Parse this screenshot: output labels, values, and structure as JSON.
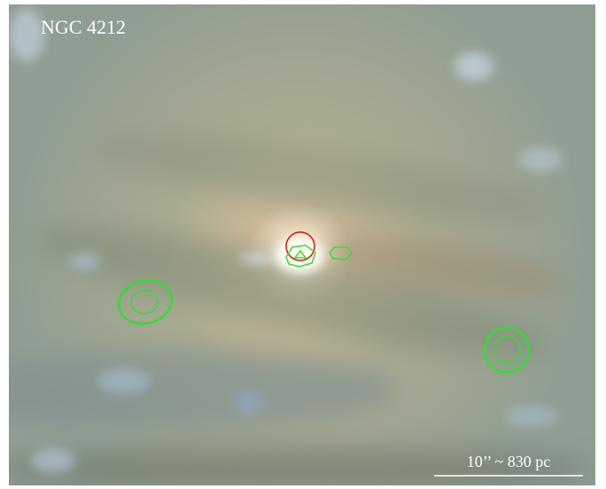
{
  "title": "NGC 4212",
  "scale_bar": {
    "label": "10’’ ~ 830 pc"
  }
}
